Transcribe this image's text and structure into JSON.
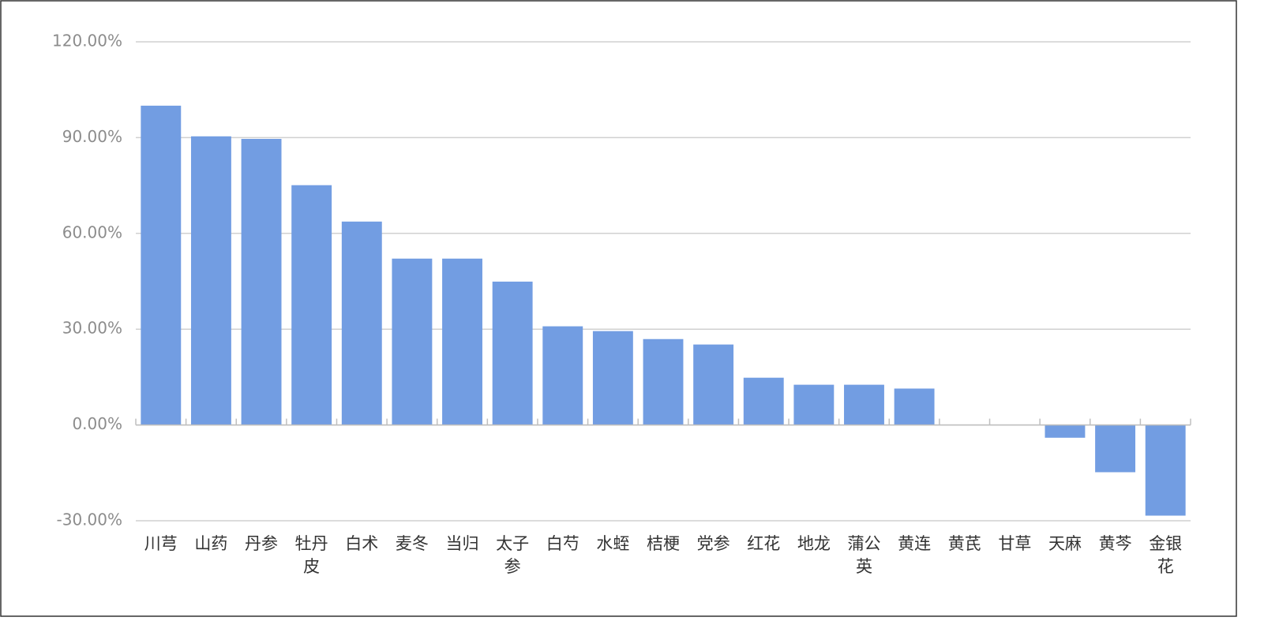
{
  "chart_data": {
    "type": "bar",
    "categories": [
      "川芎",
      "山药",
      "丹参",
      "牡丹皮",
      "白术",
      "麦冬",
      "当归",
      "太子参",
      "白芍",
      "水蛭",
      "桔梗",
      "党参",
      "红花",
      "地龙",
      "蒲公英",
      "黄连",
      "黄芪",
      "甘草",
      "天麻",
      "黄芩",
      "金银花"
    ],
    "values": [
      100.0,
      90.4,
      89.6,
      75.1,
      63.7,
      52.1,
      52.1,
      44.9,
      30.9,
      29.4,
      26.9,
      25.2,
      14.8,
      12.6,
      12.6,
      11.4,
      0,
      0,
      -4.0,
      -14.8,
      -28.4
    ],
    "color": "#729de2",
    "ylim": [
      -30,
      120
    ],
    "yticks": [
      {
        "value": -30,
        "label": "-30.00%"
      },
      {
        "value": 0,
        "label": "0.00%"
      },
      {
        "value": 30,
        "label": "30.00%"
      },
      {
        "value": 60,
        "label": "60.00%"
      },
      {
        "value": 90,
        "label": "90.00%"
      },
      {
        "value": 120,
        "label": "120.00%"
      }
    ],
    "grid": true
  }
}
